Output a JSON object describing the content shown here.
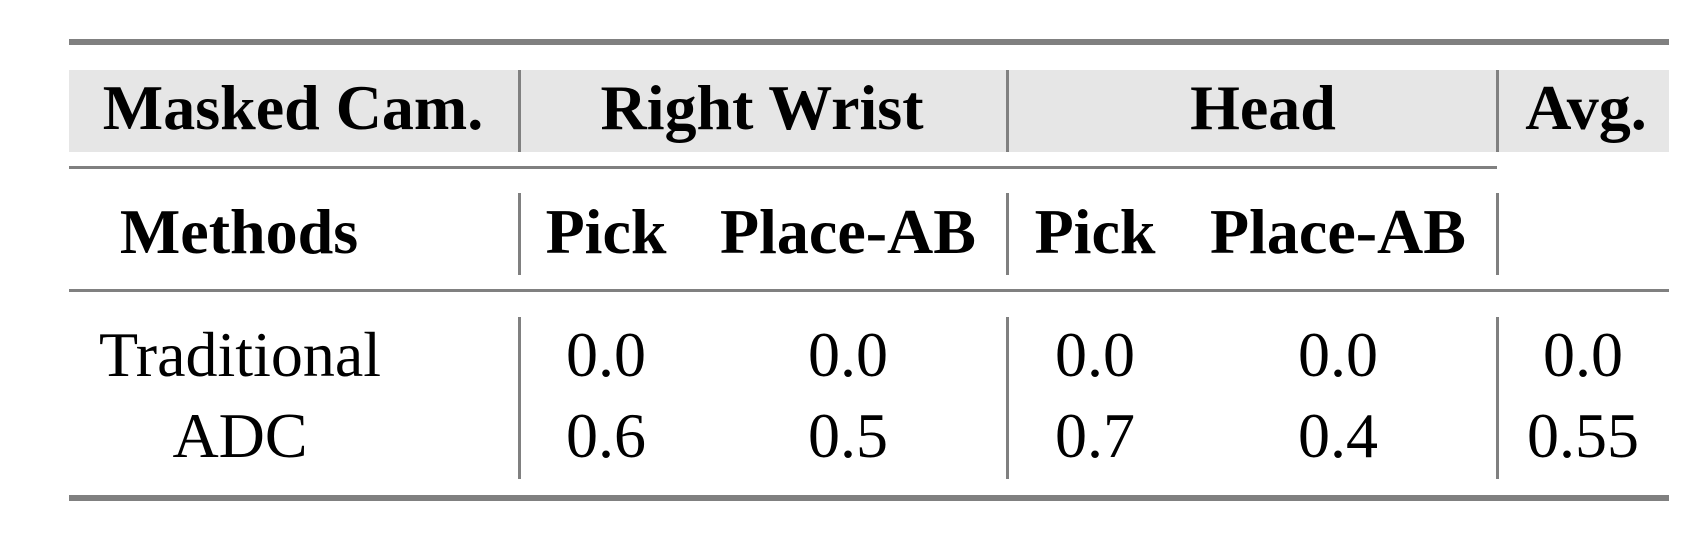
{
  "table": {
    "header_row1": {
      "masked_cam": "Masked Cam.",
      "right_wrist": "Right Wrist",
      "head": "Head",
      "avg": "Avg."
    },
    "header_row2": {
      "methods": "Methods",
      "rw_pick": "Pick",
      "rw_place": "Place-AB",
      "h_pick": "Pick",
      "h_place": "Place-AB"
    },
    "rows": [
      {
        "method": "Traditional",
        "rw_pick": "0.0",
        "rw_place": "0.0",
        "h_pick": "0.0",
        "h_place": "0.0",
        "avg": "0.0"
      },
      {
        "method": "ADC",
        "rw_pick": "0.6",
        "rw_place": "0.5",
        "h_pick": "0.7",
        "h_place": "0.4",
        "avg": "0.55"
      }
    ],
    "colors": {
      "header_bg": "#e6e6e6",
      "rules": "#808080"
    }
  }
}
